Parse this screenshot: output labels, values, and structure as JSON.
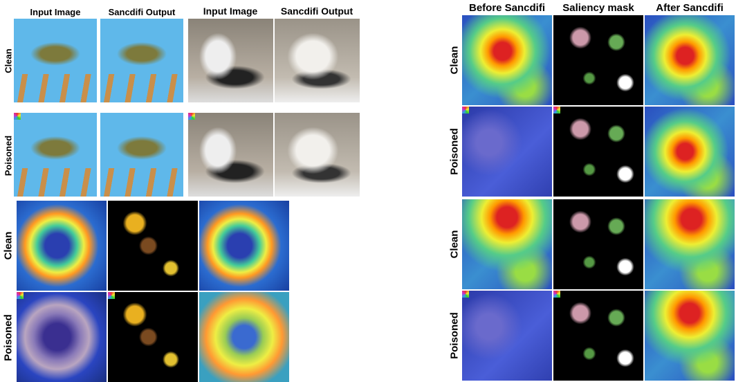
{
  "figure": {
    "left_top": {
      "headers": [
        "Input Image",
        "Sancdifi Output",
        "Input Image",
        "Sancdifi Output"
      ],
      "row_labels": [
        "Clean",
        "Poisoned"
      ]
    },
    "left_bottom": {
      "row_labels": [
        "Clean",
        "Poisoned"
      ]
    },
    "right": {
      "headers": [
        "Before Sancdifi",
        "Saliency mask",
        "After Sancdifi"
      ],
      "row_labels": [
        "Clean",
        "Poisoned",
        "Clean",
        "Poisoned"
      ]
    }
  }
}
